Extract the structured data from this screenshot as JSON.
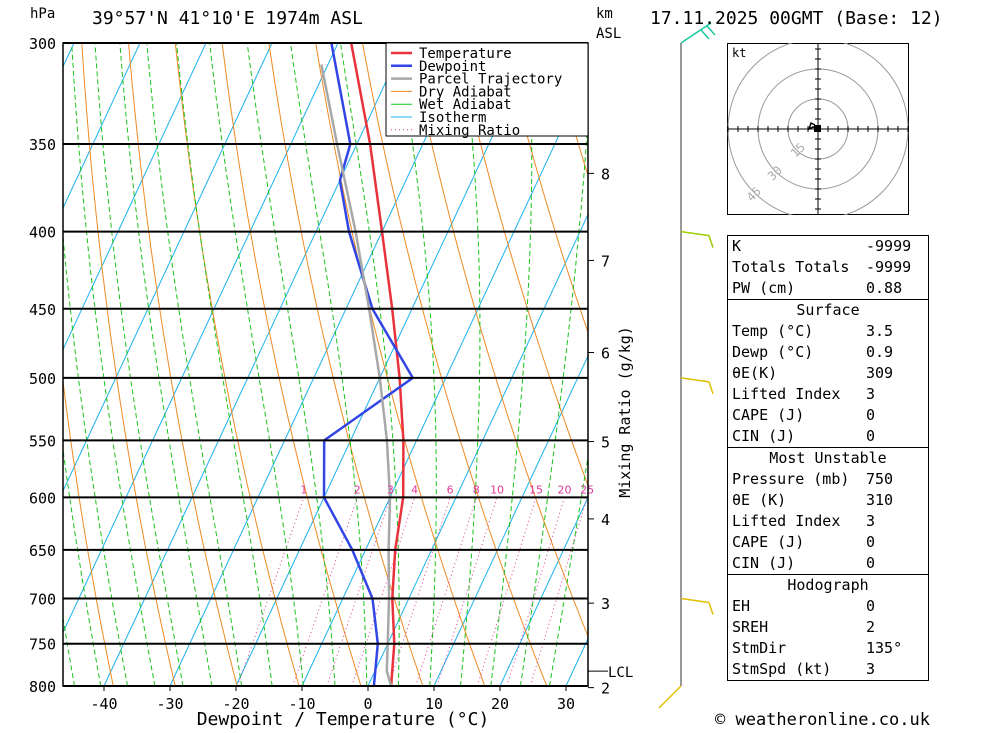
{
  "header": {
    "location": "39°57'N  41°10'E  1974m  ASL",
    "datetime": "17.11.2025 00GMT (Base: 12)",
    "hpa_label": "hPa",
    "km_label": "km",
    "asl_label": "ASL"
  },
  "chart_data": {
    "type": "skew-t log-p",
    "xlabel": "Dewpoint / Temperature (°C)",
    "ylabel_right": "Mixing Ratio (g/kg)",
    "x_ticks": [
      -40,
      -30,
      -20,
      -10,
      0,
      10,
      20,
      30
    ],
    "pressure_levels": [
      300,
      350,
      400,
      450,
      500,
      550,
      600,
      650,
      700,
      750,
      800
    ],
    "ylim_hpa": [
      800,
      300
    ],
    "xlim_c": [
      -46,
      34
    ],
    "km_ticks": [
      {
        "km": "8",
        "p": 366
      },
      {
        "km": "7",
        "p": 418
      },
      {
        "km": "6",
        "p": 481
      },
      {
        "km": "5",
        "p": 551
      },
      {
        "km": "4",
        "p": 620
      },
      {
        "km": "3",
        "p": 705
      },
      {
        "km": "2",
        "p": 802
      }
    ],
    "lcl": {
      "label": "LCL",
      "p": 782
    },
    "mixing_ratio_labels": [
      "1",
      "2",
      "3",
      "4",
      "6",
      "8",
      "10",
      "15",
      "20",
      "25"
    ],
    "legend": [
      "Temperature",
      "Dewpoint",
      "Parcel Trajectory",
      "Dry Adiabat",
      "Wet Adiabat",
      "Isotherm",
      "Mixing Ratio"
    ],
    "series": [
      {
        "name": "Temperature",
        "color": "#e8323c",
        "points": [
          [
            800,
            3.5
          ],
          [
            750,
            1.0
          ],
          [
            700,
            -2.5
          ],
          [
            650,
            -5.5
          ],
          [
            600,
            -8.0
          ],
          [
            550,
            -12.0
          ],
          [
            500,
            -17.0
          ],
          [
            450,
            -23.0
          ],
          [
            400,
            -30.0
          ],
          [
            350,
            -38.0
          ],
          [
            300,
            -48.0
          ]
        ]
      },
      {
        "name": "Dewpoint",
        "color": "#3246e6",
        "points": [
          [
            800,
            0.9
          ],
          [
            750,
            -1.5
          ],
          [
            700,
            -5.5
          ],
          [
            650,
            -12.0
          ],
          [
            600,
            -20.0
          ],
          [
            550,
            -24.0
          ],
          [
            500,
            -15.0
          ],
          [
            450,
            -26.0
          ],
          [
            400,
            -35.0
          ],
          [
            370,
            -40.0
          ],
          [
            350,
            -41.0
          ],
          [
            300,
            -51.0
          ]
        ]
      },
      {
        "name": "Parcel Trajectory",
        "color": "#a8a8a8",
        "points": [
          [
            800,
            3.5
          ],
          [
            782,
            1.8
          ],
          [
            750,
            0.0
          ],
          [
            700,
            -3.0
          ],
          [
            650,
            -6.5
          ],
          [
            600,
            -10.0
          ],
          [
            550,
            -14.5
          ],
          [
            500,
            -20.0
          ],
          [
            450,
            -26.5
          ],
          [
            400,
            -34.0
          ],
          [
            350,
            -43.0
          ],
          [
            310,
            -51.0
          ]
        ]
      }
    ],
    "wind_barbs_pressure": [
      300,
      400,
      500,
      700,
      800
    ]
  },
  "colors": {
    "temperature": "#e8323c",
    "dewpoint": "#3246e6",
    "parcel": "#a8a8a8",
    "dry_adiabat": "#ee8a22",
    "wet_adiabat": "#19c319",
    "isotherm": "#1ab2ee",
    "mixing_ratio": "#e0389a",
    "mixing_ratio_title": "#f2b8d0"
  },
  "hodograph": {
    "unit": "kt",
    "ring_labels": [
      "15",
      "30",
      "45"
    ]
  },
  "indices": {
    "k": {
      "label": "K",
      "value": "-9999"
    },
    "tt": {
      "label": "Totals Totals",
      "value": "-9999"
    },
    "pw": {
      "label": "PW (cm)",
      "value": "0.88"
    }
  },
  "surface": {
    "title": "Surface",
    "temp": {
      "label": "Temp (°C)",
      "value": "3.5"
    },
    "dewp": {
      "label": "Dewp (°C)",
      "value": "0.9"
    },
    "theta_e": {
      "label": "θE(K)",
      "value": "309"
    },
    "li": {
      "label": "Lifted Index",
      "value": "3"
    },
    "cape": {
      "label": "CAPE (J)",
      "value": "0"
    },
    "cin": {
      "label": "CIN (J)",
      "value": "0"
    }
  },
  "most_unstable": {
    "title": "Most Unstable",
    "pressure": {
      "label": "Pressure (mb)",
      "value": "750"
    },
    "theta_e": {
      "label": "θE (K)",
      "value": "310"
    },
    "li": {
      "label": "Lifted Index",
      "value": "3"
    },
    "cape": {
      "label": "CAPE (J)",
      "value": "0"
    },
    "cin": {
      "label": "CIN (J)",
      "value": "0"
    }
  },
  "hodograph_table": {
    "title": "Hodograph",
    "eh": {
      "label": "EH",
      "value": "0"
    },
    "sreh": {
      "label": "SREH",
      "value": "2"
    },
    "stmdir": {
      "label": "StmDir",
      "value": "135°"
    },
    "stmspd": {
      "label": "StmSpd (kt)",
      "value": "3"
    }
  },
  "footer": {
    "copyright": "© weatheronline.co.uk"
  }
}
